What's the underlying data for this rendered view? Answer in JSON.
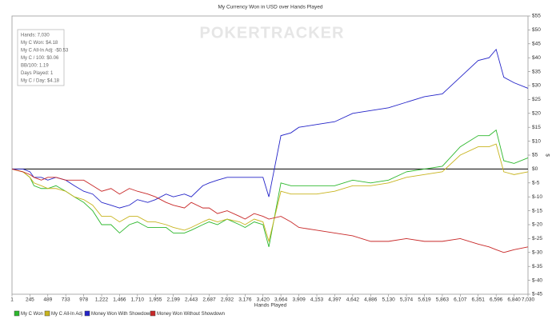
{
  "chart_data": {
    "type": "line",
    "title": "My Currency Won in USD over Hands Played",
    "watermark": "POKERTRACKER",
    "annotations": [
      "Hands: 7,030",
      "My C Won: $4.18",
      "My C All-In Adj: -$0.53",
      "My C / 100: $0.06",
      "BB/100: 1.19",
      "Days Played: 1",
      "My C / Day: $4.18"
    ],
    "x_label": "Hands Played",
    "y_label": "$",
    "x": [
      1,
      150,
      245,
      300,
      400,
      489,
      600,
      733,
      850,
      978,
      1100,
      1222,
      1350,
      1466,
      1600,
      1710,
      1850,
      1955,
      2100,
      2199,
      2350,
      2443,
      2600,
      2687,
      2800,
      2932,
      3100,
      3176,
      3300,
      3420,
      3500,
      3664,
      3800,
      3909,
      4153,
      4397,
      4642,
      4886,
      5130,
      5374,
      5619,
      5863,
      6107,
      6351,
      6500,
      6596,
      6700,
      6840,
      7030
    ],
    "series": [
      {
        "name": "My C Won",
        "color": "#2db82d",
        "values": [
          0,
          -1,
          -3,
          -6,
          -7,
          -7,
          -6,
          -8,
          -10,
          -12,
          -15,
          -20,
          -20,
          -23,
          -20,
          -19,
          -21,
          -21,
          -21,
          -23,
          -23,
          -22,
          -20,
          -19,
          -20,
          -18,
          -20,
          -21,
          -19,
          -20,
          -28,
          -5,
          -6,
          -6,
          -6,
          -6,
          -4,
          -5,
          -4,
          -1,
          0,
          1,
          8,
          12,
          12,
          14,
          3,
          2,
          4
        ]
      },
      {
        "name": "My C All-In Adj",
        "color": "#c8b41e",
        "values": [
          0,
          -1,
          -3,
          -5,
          -6,
          -7,
          -7,
          -8,
          -10,
          -11,
          -13,
          -17,
          -17,
          -19,
          -17,
          -17,
          -19,
          -19,
          -20,
          -21,
          -22,
          -21,
          -19,
          -18,
          -19,
          -18,
          -19,
          -20,
          -18,
          -19,
          -26,
          -8,
          -9,
          -9,
          -9,
          -8,
          -6,
          -6,
          -5,
          -3,
          -2,
          -1,
          5,
          8,
          8,
          9,
          -1,
          -2,
          -1
        ]
      },
      {
        "name": "Money Won With Showdown",
        "color": "#2424c8",
        "values": [
          0,
          0,
          -1,
          -3,
          -3,
          -4,
          -3,
          -4,
          -6,
          -8,
          -9,
          -12,
          -13,
          -14,
          -13,
          -11,
          -12,
          -11,
          -9,
          -10,
          -9,
          -10,
          -6,
          -5,
          -4,
          -3,
          -3,
          -3,
          -3,
          -3,
          -10,
          12,
          13,
          15,
          16,
          17,
          20,
          21,
          22,
          24,
          26,
          27,
          33,
          39,
          40,
          43,
          33,
          31,
          29
        ]
      },
      {
        "name": "Money Won Without Showdown",
        "color": "#c82828",
        "values": [
          0,
          -1,
          -2,
          -3,
          -4,
          -3,
          -3,
          -4,
          -4,
          -4,
          -6,
          -8,
          -7,
          -9,
          -7,
          -8,
          -9,
          -10,
          -12,
          -13,
          -14,
          -12,
          -14,
          -14,
          -16,
          -15,
          -17,
          -18,
          -16,
          -17,
          -18,
          -17,
          -19,
          -21,
          -22,
          -23,
          -24,
          -26,
          -26,
          -25,
          -26,
          -26,
          -25,
          -27,
          -28,
          -29,
          -30,
          -29,
          -28
        ]
      }
    ],
    "xlim": [
      1,
      7030
    ],
    "xticks": [
      1,
      245,
      489,
      733,
      978,
      {
        "value": 1222,
        "label": "1,222"
      },
      {
        "value": 1466,
        "label": "1,466"
      },
      {
        "value": 1710,
        "label": "1,710"
      },
      {
        "value": 1955,
        "label": "1,955"
      },
      {
        "value": 2199,
        "label": "2,199"
      },
      {
        "value": 2443,
        "label": "2,443"
      },
      {
        "value": 2687,
        "label": "2,687"
      },
      {
        "value": 2932,
        "label": "2,932"
      },
      {
        "value": 3176,
        "label": "3,176"
      },
      {
        "value": 3420,
        "label": "3,420"
      },
      {
        "value": 3664,
        "label": "3,664"
      },
      {
        "value": 3909,
        "label": "3,909"
      },
      {
        "value": 4153,
        "label": "4,153"
      },
      {
        "value": 4397,
        "label": "4,397"
      },
      {
        "value": 4642,
        "label": "4,642"
      },
      {
        "value": 4886,
        "label": "4,886"
      },
      {
        "value": 5130,
        "label": "5,130"
      },
      {
        "value": 5374,
        "label": "5,374"
      },
      {
        "value": 5619,
        "label": "5,619"
      },
      {
        "value": 5863,
        "label": "5,863"
      },
      {
        "value": 6107,
        "label": "6,107"
      },
      {
        "value": 6351,
        "label": "6,351"
      },
      {
        "value": 6596,
        "label": "6,596"
      },
      {
        "value": 6840,
        "label": "6,840"
      },
      {
        "value": 7030,
        "label": "7,030"
      }
    ],
    "ylim": [
      -45,
      55
    ],
    "yticks": [
      {
        "value": -45,
        "label": "$-45"
      },
      {
        "value": -40,
        "label": "$-40"
      },
      {
        "value": -35,
        "label": "$-35"
      },
      {
        "value": -30,
        "label": "$-30"
      },
      {
        "value": -25,
        "label": "$-25"
      },
      {
        "value": -20,
        "label": "$-20"
      },
      {
        "value": -15,
        "label": "$-15"
      },
      {
        "value": -10,
        "label": "$-10"
      },
      {
        "value": -5,
        "label": "$-5"
      },
      {
        "value": 0,
        "label": "$0"
      },
      {
        "value": 5,
        "label": "$5"
      },
      {
        "value": 10,
        "label": "$10"
      },
      {
        "value": 15,
        "label": "$15"
      },
      {
        "value": 20,
        "label": "$20"
      },
      {
        "value": 25,
        "label": "$25"
      },
      {
        "value": 30,
        "label": "$30"
      },
      {
        "value": 35,
        "label": "$35"
      },
      {
        "value": 40,
        "label": "$40"
      },
      {
        "value": 45,
        "label": "$45"
      },
      {
        "value": 50,
        "label": "$50"
      },
      {
        "value": 55,
        "label": "$55"
      }
    ],
    "legend": "bottom-left"
  }
}
